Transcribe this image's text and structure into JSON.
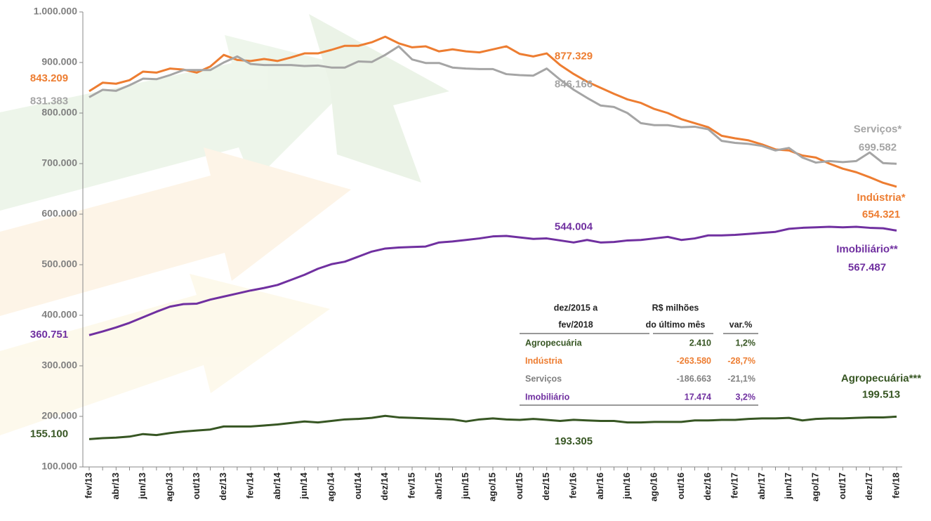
{
  "chart_data": {
    "type": "line",
    "categories": [
      "fev/13",
      null,
      "abr/13",
      null,
      "jun/13",
      null,
      "ago/13",
      null,
      "out/13",
      null,
      "dez/13",
      null,
      "fev/14",
      null,
      "abr/14",
      null,
      "jun/14",
      null,
      "ago/14",
      null,
      "out/14",
      null,
      "dez/14",
      null,
      "fev/15",
      null,
      "abr/15",
      null,
      "jun/15",
      null,
      "ago/15",
      null,
      "out/15",
      null,
      "dez/15",
      null,
      "fev/16",
      null,
      "abr/16",
      null,
      "jun/16",
      null,
      "ago/16",
      null,
      "out/16",
      null,
      "dez/16",
      null,
      "fev/17",
      null,
      "abr/17",
      null,
      "jun/17",
      null,
      "ago/17",
      null,
      "out/17",
      null,
      "dez/17",
      null,
      "fev/18"
    ],
    "ylim": [
      100000,
      1000000
    ],
    "yticks": [
      {
        "value": 100000,
        "label": "100.000"
      },
      {
        "value": 200000,
        "label": "200.000"
      },
      {
        "value": 300000,
        "label": "300.000"
      },
      {
        "value": 400000,
        "label": "400.000"
      },
      {
        "value": 500000,
        "label": "500.000"
      },
      {
        "value": 600000,
        "label": "600.000"
      },
      {
        "value": 700000,
        "label": "700.000"
      },
      {
        "value": 800000,
        "label": "800.000"
      },
      {
        "value": 900000,
        "label": "900.000"
      },
      {
        "value": 1000000,
        "label": "1.000.000"
      }
    ],
    "series": [
      {
        "name": "Indústria*",
        "color": "#ed7d31",
        "values": [
          843209,
          860000,
          858000,
          865000,
          882000,
          880000,
          888000,
          886000,
          880000,
          892000,
          915000,
          905000,
          903000,
          907000,
          903000,
          910000,
          918000,
          918000,
          925000,
          933000,
          933000,
          940000,
          951000,
          938000,
          930000,
          932000,
          922000,
          926000,
          922000,
          920000,
          926000,
          932000,
          917000,
          912000,
          918000,
          895000,
          877329,
          862000,
          850000,
          838000,
          827000,
          820000,
          808000,
          800000,
          788000,
          780000,
          772000,
          755000,
          750000,
          746000,
          738000,
          728000,
          726000,
          716000,
          712000,
          700000,
          690000,
          683000,
          673000,
          662000,
          654321
        ],
        "value_labels": [
          "843.209",
          null,
          null,
          null,
          null,
          null,
          null,
          null,
          null,
          null,
          null,
          null,
          null,
          null,
          null,
          null,
          null,
          null,
          null,
          null,
          null,
          null,
          null,
          null,
          null,
          null,
          null,
          null,
          null,
          null,
          null,
          null,
          null,
          null,
          null,
          null,
          "877.329",
          null,
          null,
          null,
          null,
          null,
          null,
          null,
          null,
          null,
          null,
          null,
          null,
          null,
          null,
          null,
          null,
          null,
          null,
          null,
          null,
          null,
          null,
          null,
          "654.321"
        ]
      },
      {
        "name": "Serviços*",
        "color": "#a5a5a5",
        "values": [
          831383,
          846000,
          844000,
          855000,
          868000,
          867000,
          875000,
          885000,
          885000,
          885000,
          900000,
          912000,
          897000,
          895000,
          895000,
          895000,
          893000,
          894000,
          890000,
          890000,
          902000,
          901000,
          915000,
          932000,
          906000,
          899000,
          899000,
          890000,
          888000,
          887000,
          887000,
          877000,
          875000,
          874000,
          888000,
          866000,
          846166,
          830000,
          815000,
          812000,
          800000,
          780000,
          776000,
          776000,
          772000,
          773000,
          768000,
          745000,
          741000,
          739000,
          735000,
          726000,
          731000,
          712000,
          702000,
          705000,
          703000,
          705000,
          722000,
          701000,
          699582
        ],
        "value_labels": [
          "831.383",
          null,
          null,
          null,
          null,
          null,
          null,
          null,
          null,
          null,
          null,
          null,
          null,
          null,
          null,
          null,
          null,
          null,
          null,
          null,
          null,
          null,
          null,
          null,
          null,
          null,
          null,
          null,
          null,
          null,
          null,
          null,
          null,
          null,
          null,
          null,
          "846.166",
          null,
          null,
          null,
          null,
          null,
          null,
          null,
          null,
          null,
          null,
          null,
          null,
          null,
          null,
          null,
          null,
          null,
          null,
          null,
          null,
          null,
          null,
          null,
          "699.582"
        ]
      },
      {
        "name": "Imobiliário**",
        "color": "#7030a0",
        "values": [
          360751,
          368000,
          376000,
          385000,
          396000,
          407000,
          417000,
          422000,
          423000,
          431000,
          437000,
          443000,
          449000,
          454000,
          460000,
          470000,
          480000,
          492000,
          501000,
          506000,
          516000,
          526000,
          532000,
          534000,
          535000,
          536000,
          544000,
          546000,
          549000,
          552000,
          556000,
          557000,
          554000,
          551000,
          552000,
          548000,
          544004,
          549000,
          544000,
          545000,
          548000,
          549000,
          552000,
          555000,
          549000,
          552000,
          558000,
          558000,
          559000,
          561000,
          563000,
          565000,
          571000,
          573000,
          574000,
          575000,
          574000,
          575000,
          573000,
          572000,
          567487
        ],
        "value_labels": [
          "360.751",
          null,
          null,
          null,
          null,
          null,
          null,
          null,
          null,
          null,
          null,
          null,
          null,
          null,
          null,
          null,
          null,
          null,
          null,
          null,
          null,
          null,
          null,
          null,
          null,
          null,
          null,
          null,
          null,
          null,
          null,
          null,
          null,
          null,
          null,
          null,
          "544.004",
          null,
          null,
          null,
          null,
          null,
          null,
          null,
          null,
          null,
          null,
          null,
          null,
          null,
          null,
          null,
          null,
          null,
          null,
          null,
          null,
          null,
          null,
          null,
          "567.487"
        ]
      },
      {
        "name": "Agropecuária***",
        "color": "#375623",
        "values": [
          155100,
          157000,
          158000,
          160000,
          165000,
          163000,
          167000,
          170000,
          172000,
          174000,
          180000,
          180000,
          180000,
          182000,
          184000,
          187000,
          190000,
          188000,
          191000,
          194000,
          195000,
          197000,
          201000,
          198000,
          197000,
          196000,
          195000,
          194000,
          190000,
          194000,
          196000,
          194000,
          193000,
          195000,
          193000,
          191000,
          193305,
          192000,
          191000,
          191000,
          188000,
          188000,
          189000,
          189000,
          189000,
          192000,
          192000,
          193000,
          193000,
          195000,
          196000,
          196000,
          197000,
          192000,
          195000,
          196000,
          196000,
          197000,
          198000,
          198000,
          199513
        ],
        "value_labels": [
          "155.100",
          null,
          null,
          null,
          null,
          null,
          null,
          null,
          null,
          null,
          null,
          null,
          null,
          null,
          null,
          null,
          null,
          null,
          null,
          null,
          null,
          null,
          null,
          null,
          null,
          null,
          null,
          null,
          null,
          null,
          null,
          null,
          null,
          null,
          null,
          null,
          "193.305",
          null,
          null,
          null,
          null,
          null,
          null,
          null,
          null,
          null,
          null,
          null,
          null,
          null,
          null,
          null,
          null,
          null,
          null,
          null,
          null,
          null,
          null,
          null,
          "199.513"
        ]
      }
    ],
    "table": {
      "header": [
        [
          "dez/2015 a",
          "fev/2018"
        ],
        [
          "R$ milhões",
          "do último mês"
        ],
        [
          "var.%"
        ]
      ],
      "rows": [
        {
          "color": "#375623",
          "cells": [
            "Agropecuária",
            "2.410",
            "1,2%"
          ]
        },
        {
          "color": "#ed7d31",
          "cells": [
            "Indústria",
            "-263.580",
            "-28,7%"
          ]
        },
        {
          "color": "#808080",
          "cells": [
            "Serviços",
            "-186.663",
            "-21,1%"
          ]
        },
        {
          "color": "#7030a0",
          "cells": [
            "Imobiliário",
            "17.474",
            "3,2%"
          ]
        }
      ]
    }
  }
}
